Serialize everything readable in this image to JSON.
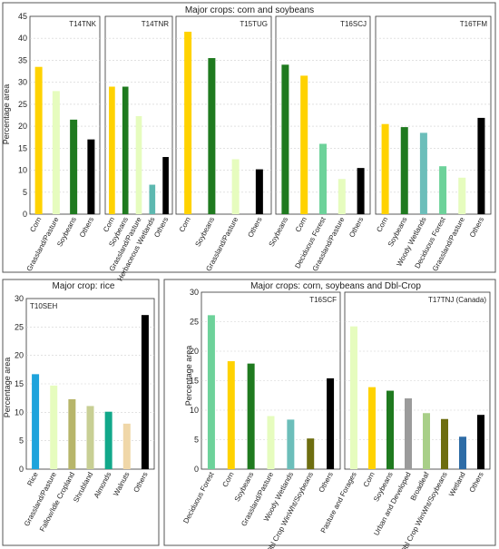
{
  "colors": {
    "corn": "#FFD200",
    "soybeans": "#1F7A1F",
    "grassland": "#E6FCBE",
    "others": "#000000",
    "herbaceous_wetlands": "#5DB8B0",
    "woody_wetlands": "#6CBEBA",
    "deciduous_forest": "#6DD29A",
    "rice": "#1EA3DC",
    "fallow": "#B7B56A",
    "shrubland": "#C8CF94",
    "almonds": "#12A88A",
    "walnuts": "#F0D7A8",
    "urban": "#9B9B9B",
    "broadleaf": "#A8CF88",
    "dbl_crop": "#6E6E10",
    "wetland": "#2E6CA6",
    "frame": "#555555",
    "grid": "#d0d0d0"
  },
  "panels": [
    {
      "id": "top",
      "title": "Major crops: corn and soybeans"
    },
    {
      "id": "rice",
      "title": "Major crop: rice"
    },
    {
      "id": "dbl",
      "title": "Major crops: corn, soybeans and Dbl-Crop"
    }
  ],
  "chart_data": [
    {
      "type": "bar",
      "panel": "top",
      "title": "T14TNK",
      "ylabel": "Percentage area",
      "ylim": [
        0,
        45
      ],
      "yticks": [
        0,
        5,
        10,
        15,
        20,
        25,
        30,
        35,
        40,
        45
      ],
      "grid": true,
      "categories": [
        "Corn",
        "Grassland/Pasture",
        "Soybeans",
        "Others"
      ],
      "values": [
        33.5,
        28,
        21.5,
        17
      ],
      "colors": [
        "corn",
        "grassland",
        "soybeans",
        "others"
      ]
    },
    {
      "type": "bar",
      "panel": "top",
      "title": "T14TNR",
      "ylim": [
        0,
        45
      ],
      "grid": true,
      "categories": [
        "Corn",
        "Soybeans",
        "Grassland/Pasture",
        "Herbaceous Wetlands",
        "Others"
      ],
      "values": [
        29,
        29,
        22.3,
        6.7,
        13
      ],
      "colors": [
        "corn",
        "soybeans",
        "grassland",
        "herbaceous_wetlands",
        "others"
      ]
    },
    {
      "type": "bar",
      "panel": "top",
      "title": "T15TUG",
      "ylim": [
        0,
        45
      ],
      "grid": true,
      "categories": [
        "Corn",
        "Soybeans",
        "Grassland/Pasture",
        "Others"
      ],
      "values": [
        41.5,
        35.5,
        12.5,
        10.2
      ],
      "colors": [
        "corn",
        "soybeans",
        "grassland",
        "others"
      ]
    },
    {
      "type": "bar",
      "panel": "top",
      "title": "T16SCJ",
      "ylim": [
        0,
        45
      ],
      "grid": true,
      "categories": [
        "Soybeans",
        "Corn",
        "Deciduous Forest",
        "Grassland/Pasture",
        "Others"
      ],
      "values": [
        34,
        31.5,
        16,
        8,
        10.5
      ],
      "colors": [
        "soybeans",
        "corn",
        "deciduous_forest",
        "grassland",
        "others"
      ]
    },
    {
      "type": "bar",
      "panel": "top",
      "title": "T16TFM",
      "ylim": [
        0,
        45
      ],
      "grid": true,
      "categories": [
        "Corn",
        "Soybeans",
        "Woody Wetlands",
        "Deciduous Forest",
        "Grassland/Pasture",
        "Others"
      ],
      "values": [
        20.5,
        19.8,
        18.5,
        10.9,
        8.3,
        21.9
      ],
      "colors": [
        "corn",
        "soybeans",
        "woody_wetlands",
        "deciduous_forest",
        "grassland",
        "others"
      ]
    },
    {
      "type": "bar",
      "panel": "rice",
      "title": "T10SEH",
      "ylabel": "Percentage area",
      "ylim": [
        0,
        30
      ],
      "yticks": [
        0,
        5,
        10,
        15,
        20,
        25,
        30
      ],
      "grid": true,
      "categories": [
        "Rice",
        "Grassland/Pasture",
        "Fallow/Idle Cropland",
        "Shrubland",
        "Almonds",
        "Walnuts",
        "Others"
      ],
      "values": [
        16.7,
        14.7,
        12.3,
        11.1,
        10.1,
        8.0,
        27.1
      ],
      "colors": [
        "rice",
        "grassland",
        "fallow",
        "shrubland",
        "almonds",
        "walnuts",
        "others"
      ]
    },
    {
      "type": "bar",
      "panel": "dbl",
      "title": "T16SCF",
      "ylabel": "Percentage area",
      "ylim": [
        0,
        30
      ],
      "yticks": [
        0,
        5,
        10,
        15,
        20,
        25,
        30
      ],
      "grid": true,
      "categories": [
        "Deciduous Forest",
        "Corn",
        "Soybeans",
        "Grassland/Pasture",
        "Woody Wetlands",
        "Dbl Crop WinWht/Soybeans",
        "Others"
      ],
      "values": [
        26.1,
        18.3,
        17.9,
        9.0,
        8.4,
        5.2,
        15.4
      ],
      "colors": [
        "deciduous_forest",
        "corn",
        "soybeans",
        "grassland",
        "woody_wetlands",
        "dbl_crop",
        "others"
      ]
    },
    {
      "type": "bar",
      "panel": "dbl",
      "title": "T17TNJ (Canada)",
      "ylim": [
        0,
        30
      ],
      "grid": true,
      "categories": [
        "Pasture and Forages",
        "Corn",
        "Soybeans",
        "Urban and Developed",
        "Broadleaf",
        "Dbl Crop WinWht/Soybeans",
        "Wetland",
        "Others"
      ],
      "values": [
        24.2,
        13.9,
        13.3,
        12.0,
        9.5,
        8.5,
        5.5,
        9.2
      ],
      "colors": [
        "grassland",
        "corn",
        "soybeans",
        "urban",
        "broadleaf",
        "dbl_crop",
        "wetland",
        "others"
      ]
    }
  ]
}
